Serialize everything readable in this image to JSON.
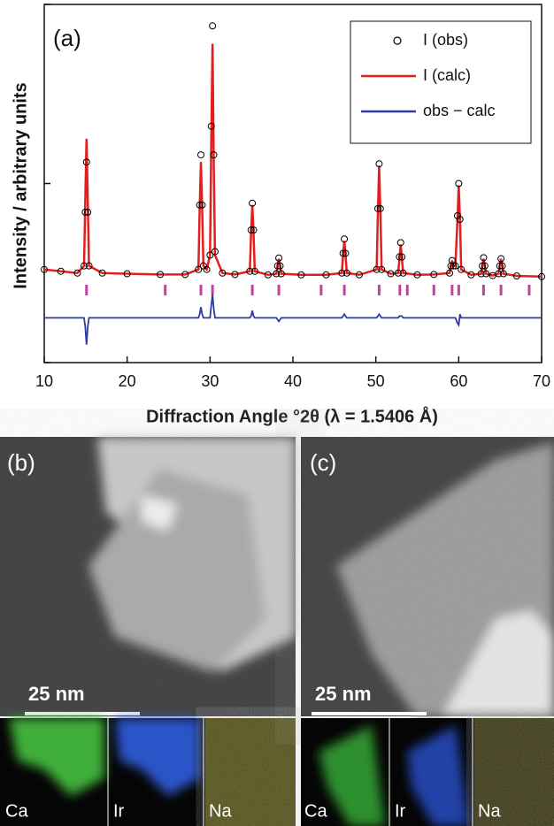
{
  "chart_data": {
    "type": "line",
    "panel_label": "(a)",
    "x_label": "Diffraction Angle °2θ (λ = 1.5406 Å)",
    "y_label": "Intensity / arbitrary units",
    "x": [
      10,
      12,
      14,
      14.8,
      14.95,
      15.1,
      15.25,
      15.4,
      17,
      20,
      24,
      27,
      28.6,
      28.75,
      28.9,
      29.05,
      29.2,
      29.6,
      30.0,
      30.15,
      30.3,
      30.45,
      30.6,
      31.5,
      33,
      34.8,
      34.95,
      35.1,
      35.25,
      35.4,
      37,
      38.0,
      38.15,
      38.3,
      38.45,
      38.6,
      41,
      44,
      45.9,
      46.05,
      46.2,
      46.35,
      46.5,
      48,
      50.1,
      50.25,
      50.4,
      50.55,
      50.7,
      51.8,
      52.7,
      52.85,
      53.0,
      53.15,
      53.3,
      55,
      57,
      58.9,
      59.05,
      59.2,
      59.35,
      59.6,
      59.85,
      60.0,
      60.15,
      60.3,
      61.5,
      62.7,
      62.85,
      63.0,
      63.15,
      63.3,
      64.1,
      64.8,
      64.95,
      65.1,
      65.25,
      65.4,
      67,
      70
    ],
    "series": [
      {
        "name": "I (obs)",
        "color": "#000000",
        "mode": "markers",
        "values": [
          26,
          25.5,
          25,
          27,
          42,
          56,
          42,
          27,
          25,
          24.8,
          24.6,
          24.6,
          26,
          44,
          58,
          44,
          27,
          26,
          30,
          66,
          94,
          58,
          31,
          25,
          24.6,
          25.5,
          37,
          44.5,
          37,
          25.5,
          24.5,
          24.8,
          27,
          29.2,
          27,
          24.8,
          24.5,
          24.5,
          25,
          30.5,
          34.5,
          30.5,
          25,
          24.5,
          26,
          43,
          55.5,
          43,
          26,
          24.8,
          25,
          29.5,
          33.5,
          29.5,
          25,
          24.5,
          24.6,
          25,
          27,
          28.5,
          27,
          27,
          41,
          50,
          40,
          26,
          24.5,
          24.8,
          27,
          29.3,
          27,
          24.8,
          24.3,
          24.8,
          27,
          29,
          27,
          24.8,
          24.2,
          24
        ]
      },
      {
        "name": "I (calc)",
        "color": "#e41e1e",
        "mode": "line",
        "values": [
          26,
          25.5,
          25,
          27,
          45,
          62.5,
          45,
          27,
          25,
          24.8,
          24.6,
          24.6,
          26,
          43,
          56,
          43,
          27,
          26,
          30,
          62,
          89,
          55,
          30,
          25,
          24.6,
          25.5,
          36,
          44,
          36,
          25.5,
          24.5,
          24.8,
          27,
          29,
          27,
          24.8,
          24.5,
          24.5,
          25,
          30,
          34,
          30,
          25,
          24.5,
          26,
          42,
          55,
          42,
          26,
          24.8,
          25,
          29,
          33,
          29,
          25,
          24.5,
          24.6,
          25,
          27,
          28.5,
          27,
          27,
          40,
          49.5,
          40,
          26,
          24.5,
          24.8,
          27,
          29,
          27,
          24.8,
          24.3,
          24.8,
          27,
          29,
          27,
          24.8,
          24.2,
          24
        ]
      },
      {
        "name": "obs − calc",
        "color": "#2e3b9e",
        "mode": "line",
        "values": [
          12.5,
          12.5,
          12.5,
          12.5,
          10,
          5,
          10,
          12.5,
          12.5,
          12.5,
          12.5,
          12.5,
          12.5,
          13.5,
          15.5,
          13.5,
          12.5,
          12.5,
          12.5,
          16,
          19,
          15,
          12.5,
          12.5,
          12.5,
          12.5,
          13,
          14.5,
          13,
          12.5,
          12.5,
          12.5,
          12,
          11.5,
          12,
          12.5,
          12.5,
          12.5,
          12.5,
          13,
          13.5,
          13,
          12.5,
          12.5,
          12.5,
          13,
          13.5,
          13,
          12.5,
          12.5,
          12.5,
          13,
          13,
          13,
          12.5,
          12.5,
          12.5,
          12.5,
          12.5,
          12.5,
          12.5,
          12.5,
          11,
          10.5,
          13.5,
          12.5,
          12.5,
          12.5,
          12.5,
          12.5,
          12.5,
          12.5,
          12.5,
          12.5,
          12.5,
          12.5,
          12.5,
          12.5,
          12.5,
          12.5
        ]
      }
    ],
    "reflections": [
      15.1,
      24.6,
      28.9,
      30.3,
      35.1,
      38.3,
      43.4,
      46.2,
      50.4,
      52.9,
      53.8,
      57.0,
      59.2,
      60.0,
      63.0,
      65.1,
      68.5
    ],
    "reflection_color": "#c2409e",
    "xlim": [
      10,
      70
    ],
    "xticks": [
      10,
      20,
      30,
      40,
      50,
      60,
      70
    ],
    "ylim": [
      0,
      100
    ],
    "yticks": [
      0,
      50,
      100
    ],
    "legend": "upper right"
  },
  "panels": [
    {
      "label": "(b)",
      "scale_bar": "25 nm",
      "maps": [
        "Ca",
        "Ir",
        "Na"
      ]
    },
    {
      "label": "(c)",
      "scale_bar": "25 nm",
      "maps": [
        "Ca",
        "Ir",
        "Na"
      ]
    }
  ]
}
